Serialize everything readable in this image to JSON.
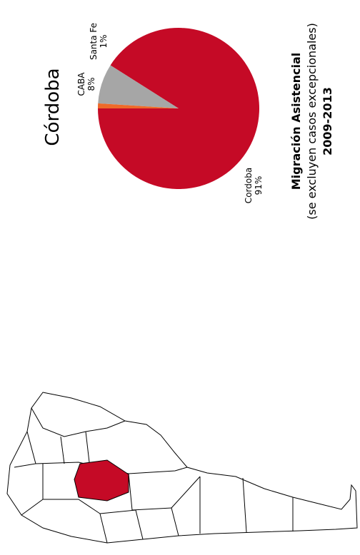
{
  "chart_data": {
    "type": "pie",
    "title": "Córdoba",
    "subtitle": [
      "Migración Asistencial",
      "(se excluyen casos excepcionales)",
      "2009-2013"
    ],
    "categories": [
      "Cordoba",
      "CABA",
      "Santa Fe"
    ],
    "values": [
      91,
      8,
      1
    ],
    "value_labels": [
      "91%",
      "8%",
      "1%"
    ],
    "colors": [
      "#c50a26",
      "#a6a6a6",
      "#ee6a2a"
    ]
  }
}
